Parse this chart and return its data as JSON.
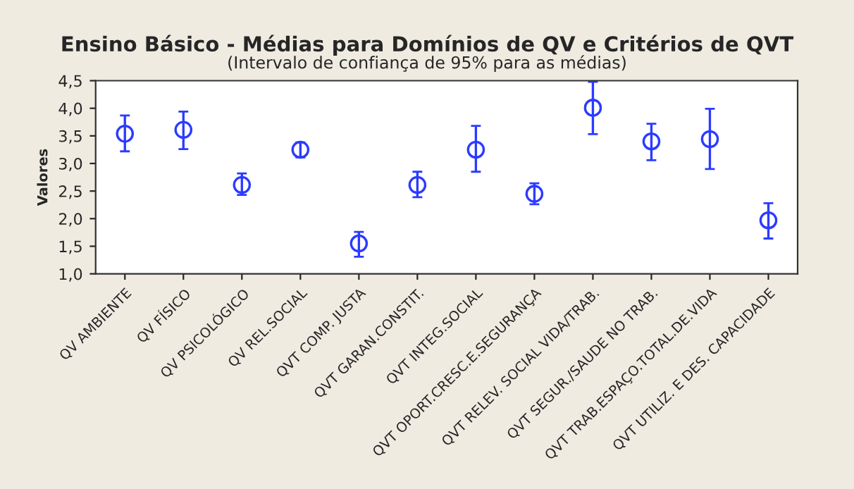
{
  "chart_data": {
    "type": "scatter",
    "title": "Ensino Básico - Médias para Domínios de QV e Critérios de QVT",
    "subtitle": "(Intervalo de confiança de 95% para as médias)",
    "ylabel": "Valores",
    "categories": [
      "QV AMBIENTE",
      "QV FÍSICO",
      "QV PSICOLÓGICO",
      "QV REL.SOCIAL",
      "QVT COMP. JUSTA",
      "QVT GARAN.CONSTIT.",
      "QVT INTEG.SOCIAL",
      "QVT OPORT.CRESC.E.SEGURANÇA",
      "QVT RELEV. SOCIAL VIDA/TRAB.",
      "QVT SEGUR./SAUDE NO TRAB.",
      "QVT TRAB.ESPAÇO.TOTAL.DE.VIDA",
      "QVT UTILIZ. E DES. CAPACIDADE"
    ],
    "series": [
      {
        "color": "#2b3bff",
        "values": [
          3.54,
          3.61,
          2.61,
          3.25,
          1.55,
          2.61,
          3.25,
          2.45,
          4.01,
          3.4,
          3.44,
          1.97
        ],
        "errors": [
          [
            3.22,
            3.87
          ],
          [
            3.26,
            3.94
          ],
          [
            2.43,
            2.82
          ],
          [
            3.11,
            3.38
          ],
          [
            1.31,
            1.76
          ],
          [
            2.39,
            2.85
          ],
          [
            2.85,
            3.68
          ],
          [
            2.26,
            2.64
          ],
          [
            3.53,
            4.48
          ],
          [
            3.06,
            3.72
          ],
          [
            2.9,
            3.99
          ],
          [
            1.64,
            2.28
          ]
        ]
      }
    ],
    "ylim": [
      1.0,
      4.5
    ],
    "yticks": [
      {
        "value": 1.0,
        "label": "1,0"
      },
      {
        "value": 1.5,
        "label": "1,5"
      },
      {
        "value": 2.0,
        "label": "2,0"
      },
      {
        "value": 2.5,
        "label": "2,5"
      },
      {
        "value": 3.0,
        "label": "3,0"
      },
      {
        "value": 3.5,
        "label": "3,5"
      },
      {
        "value": 4.0,
        "label": "4,0"
      },
      {
        "value": 4.5,
        "label": "4,5"
      }
    ],
    "marker": "circle",
    "grid": false,
    "legend": false
  }
}
